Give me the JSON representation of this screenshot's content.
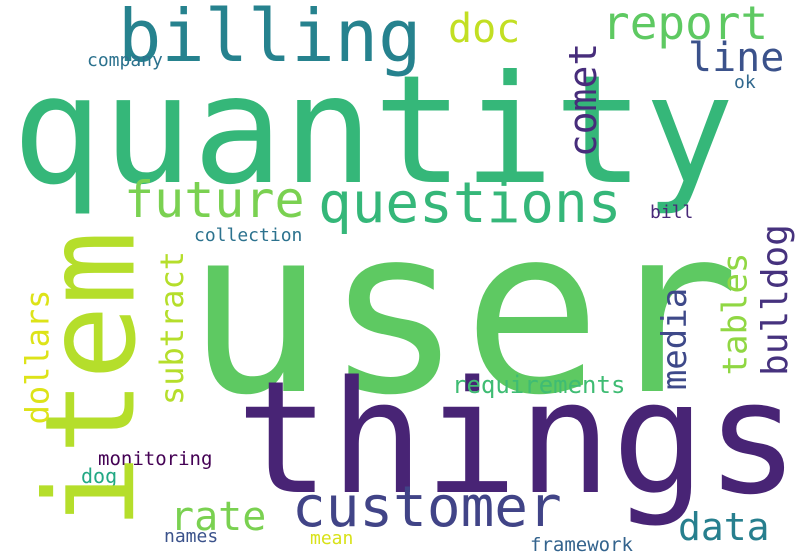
{
  "words": {
    "user": "user",
    "quantity": "quantity",
    "things": "things",
    "item": "item",
    "billing": "billing",
    "customer": "customer",
    "questions": "questions",
    "future": "future",
    "report": "report",
    "comet": "comet",
    "doc": "doc",
    "line": "line",
    "company": "company",
    "ok": "ok",
    "bill": "bill",
    "collection": "collection",
    "subtract": "subtract",
    "tables": "tables",
    "bulldog": "bulldog",
    "media": "media",
    "dollars": "dollars",
    "requirements": "requirements",
    "monitoring": "monitoring",
    "dog": "dog",
    "rate": "rate",
    "data": "data",
    "names": "names",
    "mean": "mean",
    "framework": "framework"
  },
  "colors": {
    "user": "#5ec962",
    "quantity": "#35b779",
    "things": "#482475",
    "item": "#b5de2b",
    "billing": "#26828e",
    "customer": "#414487",
    "questions": "#35b779",
    "future": "#7ad151",
    "report": "#5ec962",
    "comet": "#472d7b",
    "doc": "#c2df23",
    "line": "#3b528b",
    "company": "#2c728e",
    "ok": "#31688e",
    "bill": "#482878",
    "collection": "#2c728e",
    "subtract": "#b5de2b",
    "tables": "#90d743",
    "bulldog": "#46327e",
    "media": "#3e4989",
    "dollars": "#dde318",
    "requirements": "#3fbc73",
    "monitoring": "#440154",
    "dog": "#22a884",
    "rate": "#7ad151",
    "data": "#277f8e",
    "names": "#3b528b",
    "mean": "#d8e219",
    "framework": "#33638d"
  }
}
